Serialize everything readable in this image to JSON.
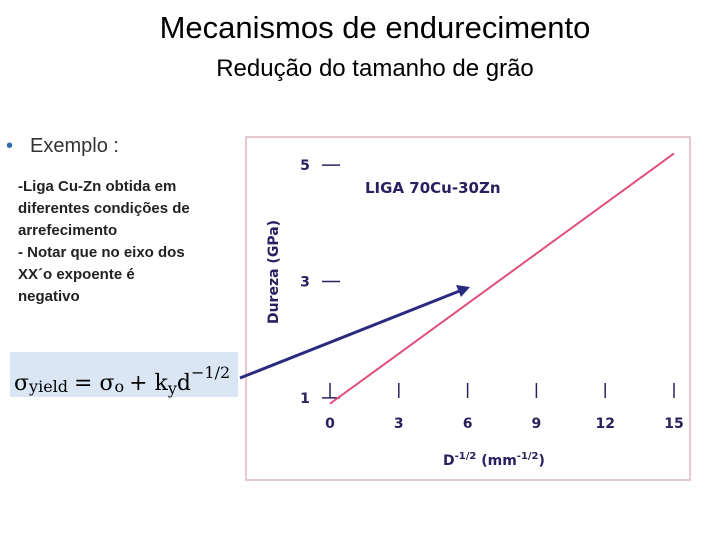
{
  "header": {
    "title": "Mecanismos de endurecimento",
    "subtitle": "Redução do tamanho de grão"
  },
  "bullet": "Exemplo :",
  "body": [
    "-Liga Cu-Zn obtida em",
    "diferentes condições de",
    "arrefecimento",
    "- Notar que no eixo dos",
    "XX´o expoente é",
    "negativo"
  ],
  "formula": [
    "σ",
    "yield",
    "= σ",
    "o",
    "+ k",
    "y",
    "d",
    "−1/2"
  ],
  "chart_data": {
    "type": "line",
    "annotation": "LIGA 70Cu-30Zn",
    "ylabel": "Dureza (GPa)",
    "xlabel": [
      "D",
      "-1/2",
      " (mm",
      "-1/2",
      ")"
    ],
    "x": [
      0,
      15
    ],
    "series": [
      {
        "color": "#e0507a",
        "values": [
          0.9,
          5.2
        ]
      }
    ],
    "xlim": [
      0,
      15
    ],
    "xticks": [
      0,
      3,
      6,
      9,
      12,
      15
    ],
    "ylim": [
      0.5,
      5.5
    ],
    "yticks": [
      1,
      3,
      5
    ]
  }
}
